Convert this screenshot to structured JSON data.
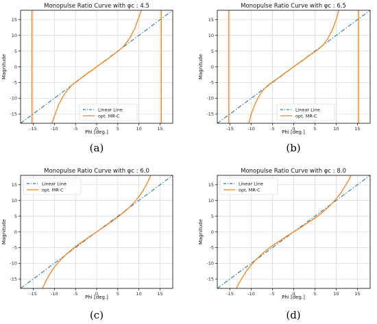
{
  "colors": {
    "linear": "#1f77b4",
    "mr": "#ff7f0e",
    "grid": "#d0d0d0"
  },
  "chart_data": [
    {
      "type": "line",
      "title": "Monopulse Ratio Curve with φc : 4.5",
      "caption": "(a)",
      "xlabel": "Phi [deg.]",
      "ylabel": "Magnitude",
      "xlim": [
        -18,
        18
      ],
      "ylim": [
        -18,
        18
      ],
      "xticks": [
        -15,
        -10,
        -5,
        0,
        5,
        10,
        15
      ],
      "yticks": [
        -15,
        -10,
        -5,
        0,
        5,
        10,
        15
      ],
      "grid": true,
      "legend_position": "lower-right",
      "series": [
        {
          "name": "Linear Line",
          "style": "dashdot",
          "x": [
            -18,
            18
          ],
          "y": [
            -18,
            18
          ]
        },
        {
          "name": "opt. MR-C",
          "style": "solid",
          "x": [
            -10.6,
            -10,
            -9,
            -8,
            -7,
            -6,
            -5,
            -4,
            -3,
            -2,
            -1,
            0,
            1,
            2,
            3,
            4,
            5,
            6,
            7,
            8,
            9,
            10,
            10.6
          ],
          "y": [
            -18.0,
            -15.8,
            -12.1,
            -9.5,
            -7.6,
            -6.0,
            -4.9,
            -3.9,
            -2.9,
            -1.9,
            -1.0,
            0,
            1.0,
            1.9,
            2.9,
            3.9,
            4.9,
            6.0,
            7.6,
            9.5,
            12.1,
            15.8,
            18.0
          ]
        },
        {
          "name": "",
          "style": "solid",
          "x": [
            -15.3,
            -15.3
          ],
          "y": [
            -18,
            18
          ]
        },
        {
          "name": "",
          "style": "solid",
          "x": [
            15.3,
            15.3
          ],
          "y": [
            -18,
            18
          ]
        }
      ]
    },
    {
      "type": "line",
      "title": "Monopulse Ratio Curve with φc : 6.5",
      "caption": "(b)",
      "xlabel": "Phi [deg.]",
      "ylabel": "Magnitude",
      "xlim": [
        -18,
        18
      ],
      "ylim": [
        -18,
        18
      ],
      "xticks": [
        -15,
        -10,
        -5,
        0,
        5,
        10,
        15
      ],
      "yticks": [
        -15,
        -10,
        -5,
        0,
        5,
        10,
        15
      ],
      "grid": true,
      "legend_position": "lower-right",
      "series": [
        {
          "name": "Linear Line",
          "style": "dashdot",
          "x": [
            -18,
            18
          ],
          "y": [
            -18,
            18
          ]
        },
        {
          "name": "opt. MR-C",
          "style": "solid",
          "x": [
            -10.6,
            -10,
            -9,
            -8,
            -7,
            -6,
            -5,
            -4,
            -3,
            -2,
            -1,
            0,
            1,
            2,
            3,
            4,
            5,
            6,
            7,
            8,
            9,
            10,
            10.6
          ],
          "y": [
            -18.0,
            -15.0,
            -11.5,
            -8.9,
            -7.1,
            -5.8,
            -4.8,
            -3.9,
            -2.9,
            -1.9,
            -1.0,
            0,
            1.0,
            1.9,
            2.9,
            3.9,
            4.8,
            5.8,
            7.1,
            8.9,
            11.5,
            15.0,
            18.0
          ]
        },
        {
          "name": "",
          "style": "solid",
          "x": [
            -15.3,
            -15.3
          ],
          "y": [
            -18,
            18
          ]
        },
        {
          "name": "",
          "style": "solid",
          "x": [
            15.3,
            15.3
          ],
          "y": [
            -18,
            18
          ]
        }
      ]
    },
    {
      "type": "line",
      "title": "Monopulse Ratio Curve with φc : 6.0",
      "caption": "(c)",
      "xlabel": "Phi [deg.]",
      "ylabel": "Magnitude",
      "xlim": [
        -18,
        18
      ],
      "ylim": [
        -18,
        18
      ],
      "xticks": [
        -15,
        -10,
        -5,
        0,
        5,
        10,
        15
      ],
      "yticks": [
        -15,
        -10,
        -5,
        0,
        5,
        10,
        15
      ],
      "grid": true,
      "legend_position": "upper-left",
      "series": [
        {
          "name": "Linear Line",
          "style": "dashdot",
          "x": [
            -18,
            18
          ],
          "y": [
            -18,
            18
          ]
        },
        {
          "name": "opt. MR-C",
          "style": "solid",
          "x": [
            -12.8,
            -12,
            -11,
            -10,
            -9,
            -8,
            -7,
            -6,
            -5,
            -4,
            -3,
            -2,
            -1,
            0,
            1,
            2,
            3,
            4,
            5,
            6,
            7,
            8,
            9,
            10,
            11,
            12,
            12.8
          ],
          "y": [
            -18.0,
            -15.6,
            -13.2,
            -11.2,
            -9.6,
            -8.2,
            -6.9,
            -5.8,
            -4.7,
            -3.7,
            -2.8,
            -1.8,
            -0.9,
            0,
            0.9,
            1.8,
            2.8,
            3.7,
            4.7,
            5.8,
            6.9,
            8.2,
            9.6,
            11.2,
            13.2,
            15.6,
            18.0
          ]
        }
      ]
    },
    {
      "type": "line",
      "title": "Monopulse Ratio Curve with φc : 8.0",
      "caption": "(d)",
      "xlabel": "Phi [deg.]",
      "ylabel": "Magnitude",
      "xlim": [
        -18,
        18
      ],
      "ylim": [
        -18,
        18
      ],
      "xticks": [
        -15,
        -10,
        -5,
        0,
        5,
        10,
        15
      ],
      "yticks": [
        -15,
        -10,
        -5,
        0,
        5,
        10,
        15
      ],
      "grid": true,
      "legend_position": "upper-left",
      "series": [
        {
          "name": "Linear Line",
          "style": "dashdot",
          "x": [
            -18,
            18
          ],
          "y": [
            -18,
            18
          ]
        },
        {
          "name": "opt. MR-C",
          "style": "solid",
          "x": [
            -13.5,
            -13,
            -12,
            -11,
            -10,
            -9,
            -8,
            -7,
            -6,
            -5,
            -4,
            -3,
            -2,
            -1,
            0,
            1,
            2,
            3,
            4,
            5,
            6,
            7,
            8,
            9,
            10,
            11,
            12,
            13,
            13.5
          ],
          "y": [
            -18.0,
            -16.6,
            -14.3,
            -12.2,
            -10.5,
            -9.0,
            -7.7,
            -6.5,
            -5.4,
            -4.4,
            -3.5,
            -2.6,
            -1.7,
            -0.8,
            0,
            0.8,
            1.7,
            2.6,
            3.5,
            4.4,
            5.4,
            6.5,
            7.7,
            9.0,
            10.5,
            12.2,
            14.3,
            16.6,
            18.0
          ]
        }
      ]
    }
  ]
}
